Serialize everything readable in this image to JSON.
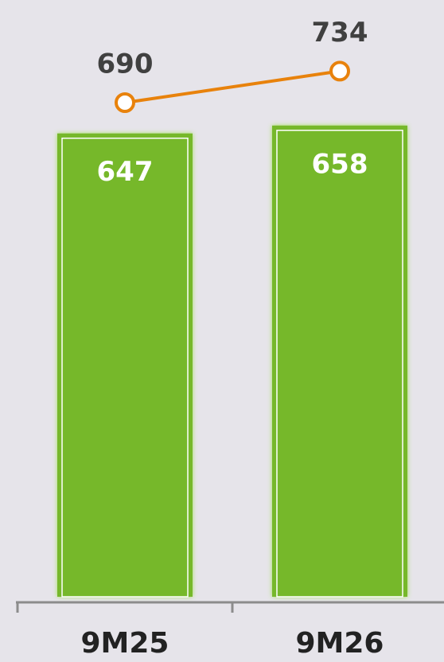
{
  "chart_data": {
    "type": "bar",
    "categories": [
      "9M25",
      "9M26"
    ],
    "series": [
      {
        "type": "bar",
        "color": "#76b82a",
        "values": [
          647,
          658
        ]
      },
      {
        "type": "line",
        "color": "#e8820c",
        "values": [
          690,
          734
        ]
      }
    ],
    "ylim": [
      0,
      830
    ]
  }
}
